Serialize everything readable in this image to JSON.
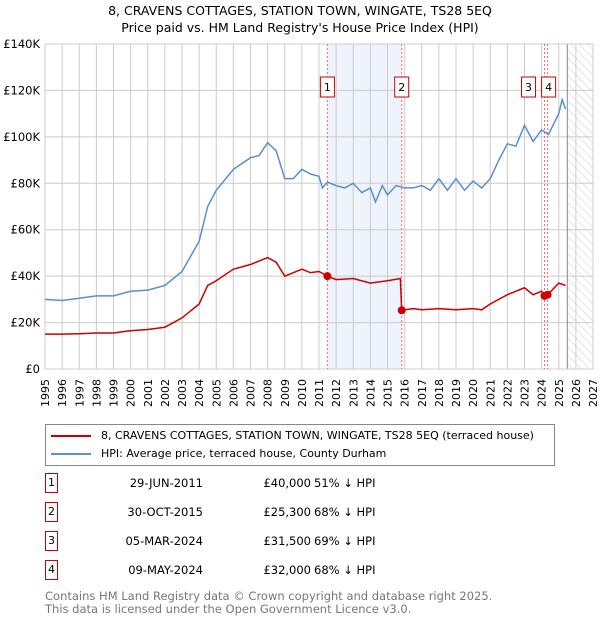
{
  "chart_data": {
    "type": "line",
    "title": "8, CRAVENS COTTAGES, STATION TOWN, WINGATE, TS28 5EQ",
    "subtitle": "Price paid vs. HM Land Registry's House Price Index (HPI)",
    "xlim": [
      1995,
      2027
    ],
    "ylim": [
      0,
      140000
    ],
    "yticks": [
      0,
      20000,
      40000,
      60000,
      80000,
      100000,
      120000,
      140000
    ],
    "ytick_labels": [
      "£0",
      "£20K",
      "£40K",
      "£60K",
      "£80K",
      "£100K",
      "£120K",
      "£140K"
    ],
    "xticks": [
      1995,
      1996,
      1997,
      1998,
      1999,
      2000,
      2001,
      2002,
      2003,
      2004,
      2005,
      2006,
      2007,
      2008,
      2009,
      2010,
      2011,
      2012,
      2013,
      2014,
      2015,
      2016,
      2017,
      2018,
      2019,
      2020,
      2021,
      2022,
      2023,
      2024,
      2025,
      2026,
      2027
    ],
    "grid": true,
    "forecast_start": 2025.5,
    "series": [
      {
        "name": "8, CRAVENS COTTAGES, STATION TOWN, WINGATE, TS28 5EQ (terraced house)",
        "color": "#cc0000",
        "x": [
          1995,
          1996,
          1997,
          1998,
          1999,
          2000,
          2001,
          2002,
          2003,
          2004,
          2004.5,
          2005,
          2006,
          2007,
          2008,
          2008.5,
          2009,
          2010,
          2010.5,
          2011,
          2011.49,
          2012,
          2013,
          2014,
          2015,
          2015.75,
          2015.83,
          2016.5,
          2017,
          2018,
          2019,
          2020,
          2020.5,
          2021,
          2022,
          2023,
          2023.5,
          2024,
          2024.17,
          2024.35,
          2025,
          2025.4
        ],
        "y": [
          15000,
          15000,
          15200,
          15500,
          15500,
          16500,
          17000,
          18000,
          22000,
          28000,
          36000,
          38000,
          43000,
          45000,
          48000,
          46000,
          40000,
          43000,
          41500,
          42000,
          40000,
          38500,
          39000,
          37000,
          38000,
          39000,
          25300,
          26000,
          25500,
          26000,
          25500,
          26000,
          25500,
          28000,
          32000,
          35000,
          32000,
          33500,
          31500,
          32000,
          37000,
          36000
        ]
      },
      {
        "name": "HPI: Average price, terraced house, County Durham",
        "color": "#5b8fd0",
        "x": [
          1995,
          1996,
          1997,
          1998,
          1999,
          2000,
          2001,
          2002,
          2003,
          2004,
          2004.5,
          2005,
          2006,
          2007,
          2007.5,
          2008,
          2008.5,
          2009,
          2009.5,
          2010,
          2010.5,
          2011,
          2011.2,
          2011.5,
          2012,
          2012.5,
          2013,
          2013.5,
          2014,
          2014.3,
          2014.7,
          2015,
          2015.5,
          2016,
          2016.5,
          2017,
          2017.5,
          2018,
          2018.5,
          2019,
          2019.5,
          2020,
          2020.5,
          2021,
          2021.5,
          2022,
          2022.5,
          2023,
          2023.5,
          2024,
          2024.4,
          2025,
          2025.2,
          2025.4
        ],
        "y": [
          30000,
          29500,
          30500,
          31500,
          31500,
          33500,
          34000,
          36000,
          42000,
          55000,
          70000,
          77000,
          86000,
          91000,
          92000,
          97500,
          94000,
          82000,
          82000,
          86000,
          84000,
          83000,
          78000,
          80500,
          79000,
          78000,
          80000,
          76000,
          78000,
          72000,
          79000,
          75000,
          79000,
          78000,
          78000,
          79000,
          77000,
          82000,
          77000,
          82000,
          77000,
          81000,
          78000,
          82000,
          90000,
          97000,
          96000,
          105000,
          98000,
          103000,
          101000,
          110000,
          116000,
          112000
        ]
      }
    ],
    "annotations": [
      {
        "label": "1",
        "date": "29-JUN-2011",
        "x": 2011.49,
        "price": "£40,000",
        "price_value": 40000,
        "hpi": "51% ↓ HPI"
      },
      {
        "label": "2",
        "date": "30-OCT-2015",
        "x": 2015.83,
        "price": "£25,300",
        "price_value": 25300,
        "hpi": "68% ↓ HPI"
      },
      {
        "label": "3",
        "date": "05-MAR-2024",
        "x": 2024.17,
        "price": "£31,500",
        "price_value": 31500,
        "hpi": "69% ↓ HPI"
      },
      {
        "label": "4",
        "date": "09-MAY-2024",
        "x": 2024.35,
        "price": "£32,000",
        "price_value": 32000,
        "hpi": "68% ↓ HPI"
      }
    ]
  },
  "footer": {
    "line1": "Contains HM Land Registry data © Crown copyright and database right 2025.",
    "line2": "This data is licensed under the Open Government Licence v3.0."
  }
}
